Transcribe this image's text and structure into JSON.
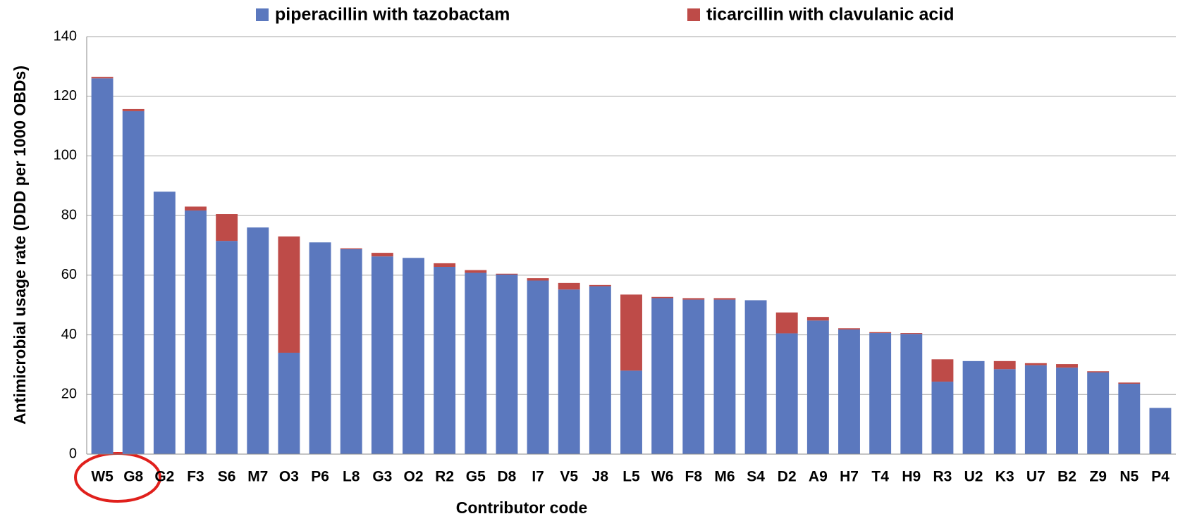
{
  "chart_data": {
    "type": "stacked_bar",
    "categories": [
      "W5",
      "G8",
      "G2",
      "F3",
      "S6",
      "M7",
      "O3",
      "P6",
      "L8",
      "G3",
      "O2",
      "R2",
      "G5",
      "D8",
      "I7",
      "V5",
      "J8",
      "L5",
      "W6",
      "F8",
      "M6",
      "S4",
      "D2",
      "A9",
      "H7",
      "T4",
      "H9",
      "R3",
      "U2",
      "K3",
      "U7",
      "B2",
      "Z9",
      "N5",
      "P4"
    ],
    "series": [
      {
        "name": "piperacillin with tazobactam",
        "color": "#5b78be",
        "values": [
          126,
          115,
          88,
          81.7,
          71.5,
          76,
          34,
          71,
          68.7,
          66.3,
          65.8,
          62.8,
          60.8,
          60.2,
          58.2,
          55.2,
          56.3,
          28,
          52.3,
          51.8,
          51.8,
          51.6,
          40.5,
          44.8,
          41.8,
          40.6,
          40.3,
          24.3,
          31.2,
          28.5,
          29.8,
          29,
          27.4,
          23.6,
          15.5
        ]
      },
      {
        "name": "ticarcillin with clavulanic acid",
        "color": "#be4b48",
        "values": [
          0.5,
          0.7,
          0,
          1.3,
          9,
          0,
          39,
          0,
          0.3,
          1.2,
          0,
          1.2,
          0.9,
          0.3,
          0.8,
          2.2,
          0.4,
          25.5,
          0.4,
          0.5,
          0.5,
          0,
          7,
          1.2,
          0.4,
          0.3,
          0.3,
          7.5,
          0,
          2.7,
          0.7,
          1.2,
          0.4,
          0.4,
          0
        ]
      }
    ],
    "x_label": "Contributor code",
    "y_label": "Antimicrobial usage rate (DDD per 1000 OBDs)",
    "ylim": [
      0,
      140
    ],
    "yticks": [
      0,
      20,
      40,
      60,
      80,
      100,
      120,
      140
    ],
    "grid": true,
    "legend": "top"
  }
}
